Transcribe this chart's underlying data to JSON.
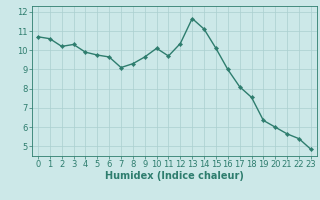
{
  "x": [
    0,
    1,
    2,
    3,
    4,
    5,
    6,
    7,
    8,
    9,
    10,
    11,
    12,
    13,
    14,
    15,
    16,
    17,
    18,
    19,
    20,
    21,
    22,
    23
  ],
  "y": [
    10.7,
    10.6,
    10.2,
    10.3,
    9.9,
    9.75,
    9.65,
    9.1,
    9.3,
    9.65,
    10.1,
    9.7,
    10.35,
    11.65,
    11.1,
    10.1,
    9.0,
    8.1,
    7.55,
    6.35,
    6.0,
    5.65,
    5.4,
    4.85
  ],
  "line_color": "#2e7d6e",
  "marker": "D",
  "marker_size": 2.2,
  "bg_color": "#cce8e8",
  "grid_color": "#aacfcf",
  "xlabel": "Humidex (Indice chaleur)",
  "ylim": [
    4.5,
    12.3
  ],
  "xlim": [
    -0.5,
    23.5
  ],
  "yticks": [
    5,
    6,
    7,
    8,
    9,
    10,
    11,
    12
  ],
  "xticks": [
    0,
    1,
    2,
    3,
    4,
    5,
    6,
    7,
    8,
    9,
    10,
    11,
    12,
    13,
    14,
    15,
    16,
    17,
    18,
    19,
    20,
    21,
    22,
    23
  ],
  "tick_color": "#2e7d6e",
  "label_color": "#2e7d6e",
  "font_size_axis": 6.0,
  "font_size_label": 7.0,
  "linewidth": 1.0
}
